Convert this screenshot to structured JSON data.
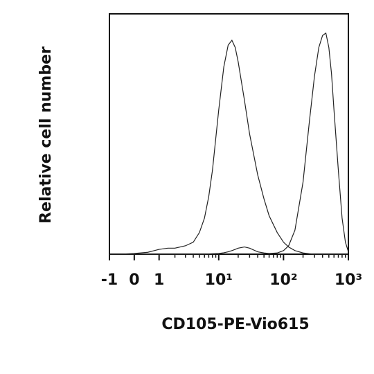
{
  "chart_data": {
    "type": "line",
    "x_label": "CD105-PE-Vio615",
    "y_label": "Relative cell number",
    "xscale": "asinh",
    "xlim": [
      -1,
      1000
    ],
    "ylim": [
      0,
      100
    ],
    "xticks": [
      -1,
      0,
      1,
      {
        "value": 10,
        "label": "10¹"
      },
      {
        "value": 100,
        "label": "10²"
      },
      {
        "value": 1000,
        "label": "10³"
      }
    ],
    "xminorticks": [
      2,
      3,
      4,
      5,
      6,
      7,
      8,
      9,
      20,
      30,
      40,
      50,
      60,
      70,
      80,
      90,
      200,
      300,
      400,
      500,
      600,
      700,
      800,
      900
    ],
    "x": [
      -1,
      -0.5,
      0,
      0.5,
      1,
      1.5,
      2,
      3,
      4,
      5,
      6,
      7,
      8,
      10,
      12,
      14,
      16,
      18,
      20,
      25,
      30,
      40,
      50,
      60,
      80,
      100,
      120,
      150,
      200,
      250,
      300,
      350,
      400,
      450,
      500,
      550,
      600,
      700,
      800,
      900,
      1000
    ],
    "series": [
      {
        "color": "#222222",
        "values": [
          0,
          0,
          0.3,
          0.8,
          2,
          2.5,
          2.5,
          3.5,
          5,
          9,
          15,
          24,
          35,
          60,
          78,
          87,
          89,
          86,
          80,
          64,
          50,
          33,
          23,
          16,
          9,
          5,
          3,
          1.5,
          0.5,
          0.2,
          0,
          0,
          0,
          0,
          0,
          0,
          0,
          0,
          0,
          0,
          0
        ]
      },
      {
        "color": "#222222",
        "values": [
          0,
          0,
          0,
          0,
          0,
          0,
          0,
          0,
          0,
          0,
          0,
          0.1,
          0.2,
          0.3,
          0.6,
          1,
          1.5,
          2,
          2.5,
          3,
          2.5,
          1,
          0.5,
          0.3,
          0.5,
          1.5,
          3.5,
          10,
          30,
          55,
          74,
          86,
          91,
          92,
          86,
          75,
          60,
          35,
          15,
          5,
          1
        ]
      }
    ]
  }
}
